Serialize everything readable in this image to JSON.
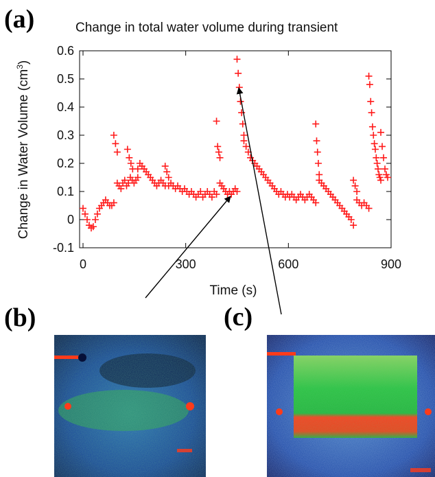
{
  "panels": {
    "a_label": "(a)",
    "b_label": "(b)",
    "c_label": "(c)"
  },
  "colors": {
    "marker": "#ff1a1a",
    "axis": "#000000",
    "image_background": "#0d1a52",
    "image_green": "#3bb34a",
    "image_red": "#ff3b1a"
  },
  "chart_data": {
    "type": "scatter",
    "title": "Change in total water volume during transient",
    "xlabel": "Time (s)",
    "ylabel_main": "Change in Water Volume (cm",
    "ylabel_sup": "3",
    "ylabel_tail": ")",
    "xlim": [
      -10,
      900
    ],
    "ylim": [
      -0.1,
      0.6
    ],
    "x_ticks": [
      0,
      300,
      600,
      900
    ],
    "y_ticks": [
      -0.1,
      0,
      0.1,
      0.2,
      0.3,
      0.4,
      0.5,
      0.6
    ],
    "marker": "+",
    "grid": false,
    "series": [
      {
        "segments": [
          {
            "x_start": 0,
            "x_end": 90,
            "y_values": [
              0.04,
              0.02,
              0.0,
              -0.02,
              -0.03,
              -0.025,
              0.0,
              0.02,
              0.04,
              0.05,
              0.06,
              0.07,
              0.06,
              0.05,
              0.05,
              0.06
            ]
          },
          {
            "x_start": 90,
            "x_end": 100,
            "y_values": [
              0.3,
              0.27,
              0.24
            ]
          },
          {
            "x_start": 100,
            "x_end": 160,
            "y_values": [
              0.13,
              0.12,
              0.11,
              0.13,
              0.14,
              0.12,
              0.13,
              0.15,
              0.14,
              0.13,
              0.14,
              0.15
            ]
          },
          {
            "x_start": 130,
            "x_end": 145,
            "y_values": [
              0.25,
              0.22,
              0.2,
              0.18
            ]
          },
          {
            "x_start": 160,
            "x_end": 240,
            "y_values": [
              0.18,
              0.2,
              0.19,
              0.18,
              0.17,
              0.16,
              0.15,
              0.14,
              0.13,
              0.12,
              0.13,
              0.14,
              0.13,
              0.12
            ]
          },
          {
            "x_start": 240,
            "x_end": 250,
            "y_values": [
              0.19,
              0.17,
              0.15
            ]
          },
          {
            "x_start": 250,
            "x_end": 390,
            "y_values": [
              0.12,
              0.13,
              0.12,
              0.11,
              0.12,
              0.11,
              0.1,
              0.11,
              0.1,
              0.09,
              0.1,
              0.09,
              0.08,
              0.09,
              0.1,
              0.08,
              0.09,
              0.1,
              0.09,
              0.08,
              0.1,
              0.09
            ]
          },
          {
            "x_start": 390,
            "x_end": 400,
            "y_values": [
              0.35,
              0.26,
              0.24,
              0.22
            ]
          },
          {
            "x_start": 400,
            "x_end": 450,
            "y_values": [
              0.13,
              0.12,
              0.11,
              0.1,
              0.09,
              0.1,
              0.09,
              0.1,
              0.11,
              0.1
            ]
          },
          {
            "x_start": 450,
            "x_end": 470,
            "y_values": [
              0.57,
              0.52,
              0.47,
              0.42,
              0.38,
              0.34,
              0.3
            ]
          },
          {
            "x_start": 470,
            "x_end": 680,
            "y_values": [
              0.28,
              0.26,
              0.24,
              0.22,
              0.21,
              0.2,
              0.19,
              0.18,
              0.17,
              0.16,
              0.15,
              0.14,
              0.13,
              0.12,
              0.11,
              0.1,
              0.09,
              0.1,
              0.09,
              0.08,
              0.09,
              0.08,
              0.09,
              0.08,
              0.07,
              0.08,
              0.09,
              0.08,
              0.07,
              0.08,
              0.09,
              0.08,
              0.07,
              0.06
            ]
          },
          {
            "x_start": 680,
            "x_end": 690,
            "y_values": [
              0.34,
              0.28,
              0.24,
              0.2,
              0.16
            ]
          },
          {
            "x_start": 690,
            "x_end": 790,
            "y_values": [
              0.14,
              0.13,
              0.12,
              0.11,
              0.1,
              0.09,
              0.08,
              0.07,
              0.06,
              0.05,
              0.04,
              0.03,
              0.02,
              0.01,
              0.0,
              -0.02
            ]
          },
          {
            "x_start": 790,
            "x_end": 800,
            "y_values": [
              0.14,
              0.12,
              0.1
            ]
          },
          {
            "x_start": 800,
            "x_end": 835,
            "y_values": [
              0.07,
              0.06,
              0.05,
              0.06,
              0.05,
              0.04
            ]
          },
          {
            "x_start": 835,
            "x_end": 870,
            "y_values": [
              0.51,
              0.48,
              0.42,
              0.38,
              0.33,
              0.3,
              0.27,
              0.25,
              0.22,
              0.2,
              0.18,
              0.16,
              0.15,
              0.14
            ]
          },
          {
            "x_start": 870,
            "x_end": 890,
            "y_values": [
              0.31,
              0.26,
              0.22,
              0.18,
              0.16,
              0.15
            ]
          }
        ]
      }
    ]
  }
}
